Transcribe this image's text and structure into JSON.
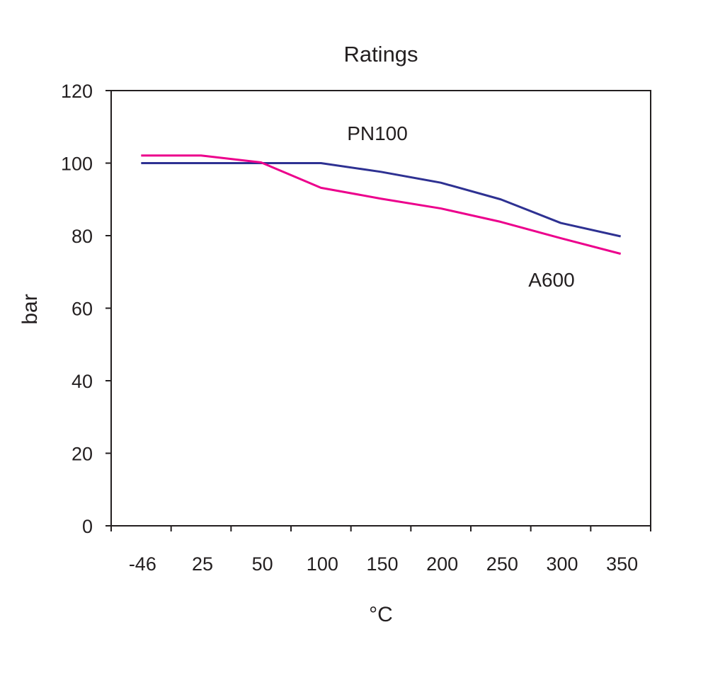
{
  "chart_data": {
    "type": "line",
    "title": "Ratings",
    "xlabel": "°C",
    "ylabel": "bar",
    "categories": [
      "-46",
      "25",
      "50",
      "100",
      "150",
      "200",
      "250",
      "300",
      "350"
    ],
    "ylim": [
      0,
      120
    ],
    "yticks": [
      "0",
      "20",
      "40",
      "60",
      "80",
      "100",
      "120"
    ],
    "grid": false,
    "legend": "none",
    "series": [
      {
        "name": "PN100",
        "color": "#2e3192",
        "values": [
          100,
          100,
          100,
          100,
          97.6,
          94.6,
          90,
          83.5,
          79.8
        ]
      },
      {
        "name": "A600",
        "color": "#ec008c",
        "values": [
          102.1,
          102.1,
          100.2,
          93.2,
          90.2,
          87.5,
          83.8,
          79.3,
          75
        ]
      }
    ],
    "annotations": [
      {
        "text": "PN100",
        "series": "PN100"
      },
      {
        "text": "A600",
        "series": "A600"
      }
    ]
  }
}
